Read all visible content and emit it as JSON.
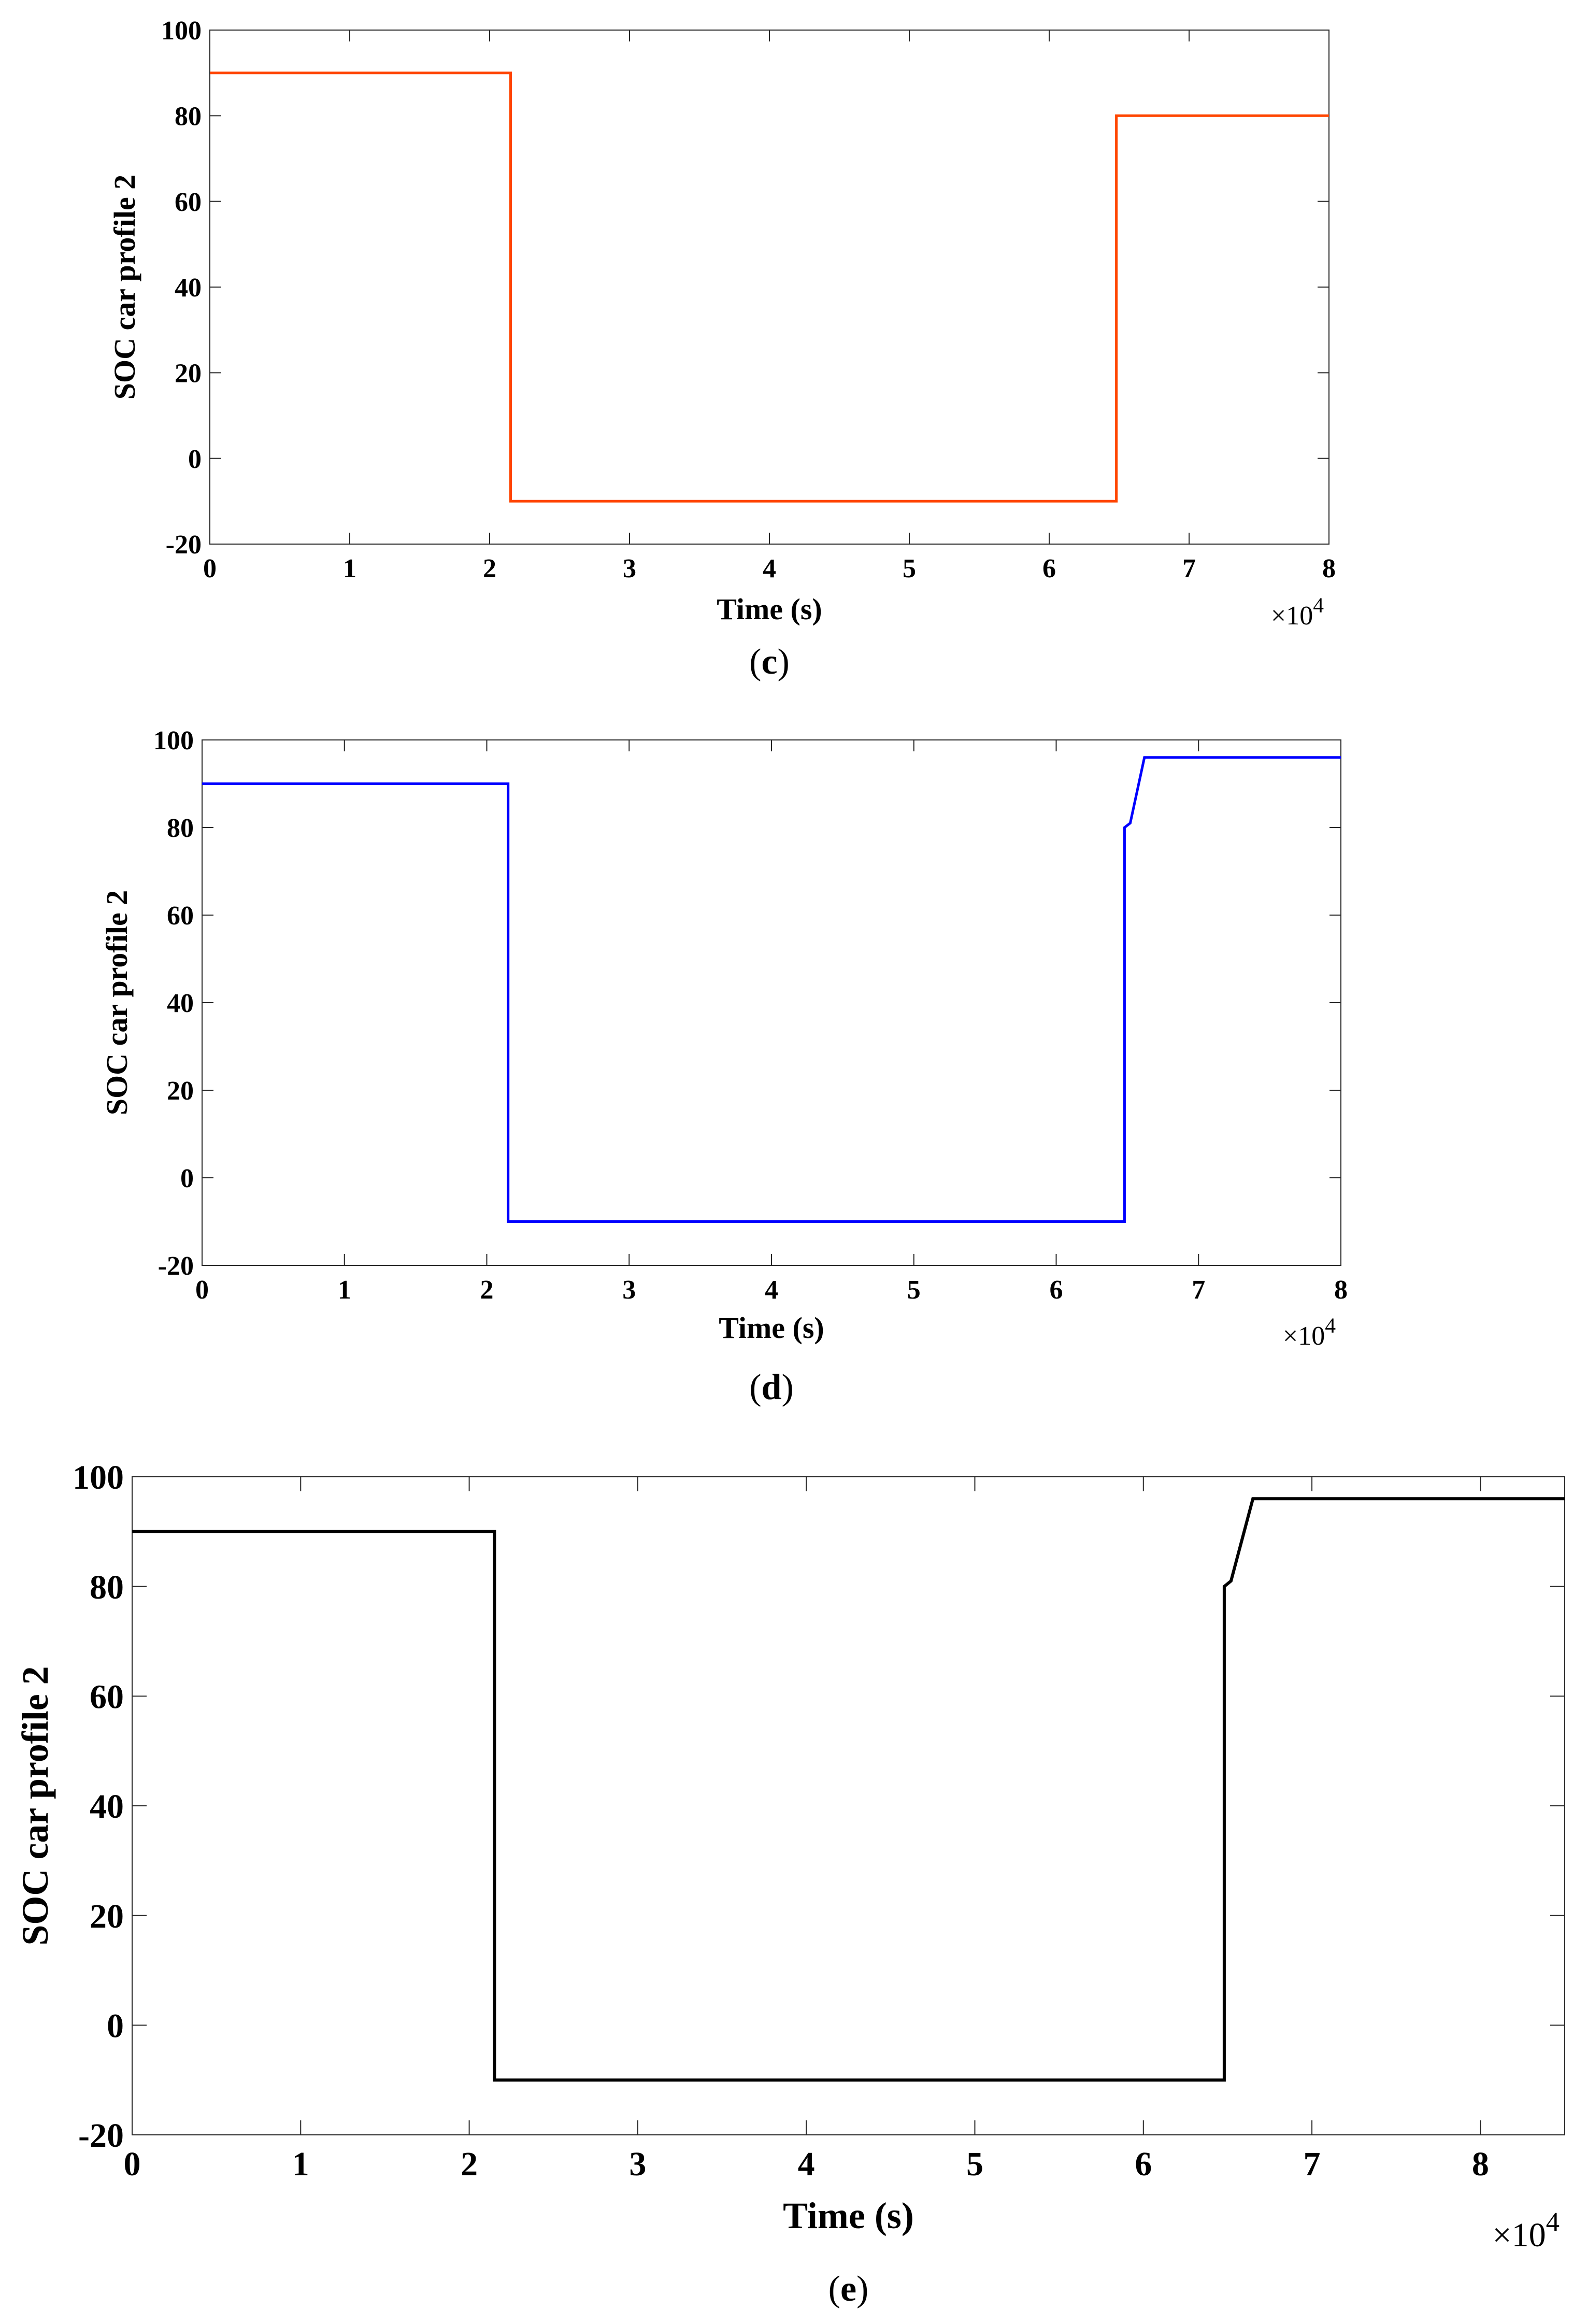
{
  "chart_data": [
    {
      "type": "line",
      "panel_label": "c",
      "xlabel": "Time (s)",
      "ylabel": "SOC car profile 2",
      "x_multiplier": "×10",
      "x_multiplier_exp": "4",
      "xlim": [
        0,
        8
      ],
      "ylim": [
        -20,
        100
      ],
      "xticks": [
        "0",
        "1",
        "2",
        "3",
        "4",
        "5",
        "6",
        "7",
        "8"
      ],
      "yticks": [
        "-20",
        "0",
        "20",
        "40",
        "60",
        "80",
        "100"
      ],
      "grid": false,
      "series": [
        {
          "color": "#ff4500",
          "x": [
            0,
            2.15,
            2.15,
            6.48,
            6.48,
            8.0
          ],
          "y": [
            90,
            90,
            -10,
            -10,
            80,
            80
          ]
        }
      ]
    },
    {
      "type": "line",
      "panel_label": "d",
      "xlabel": "Time (s)",
      "ylabel": "SOC car profile 2",
      "x_multiplier": "×10",
      "x_multiplier_exp": "4",
      "xlim": [
        0,
        8
      ],
      "ylim": [
        -20,
        100
      ],
      "xticks": [
        "0",
        "1",
        "2",
        "3",
        "4",
        "5",
        "6",
        "7",
        "8"
      ],
      "yticks": [
        "-20",
        "0",
        "20",
        "40",
        "60",
        "80",
        "100"
      ],
      "grid": false,
      "series": [
        {
          "color": "#0000ff",
          "x": [
            0,
            2.15,
            2.15,
            6.48,
            6.48,
            6.52,
            6.62,
            8.0
          ],
          "y": [
            90,
            90,
            -10,
            -10,
            80,
            81,
            96,
            96
          ]
        }
      ]
    },
    {
      "type": "line",
      "panel_label": "e",
      "xlabel": "Time (s)",
      "ylabel": "SOC car profile 2",
      "x_multiplier": "×10",
      "x_multiplier_exp": "4",
      "xlim": [
        0,
        8.5
      ],
      "ylim": [
        -20,
        100
      ],
      "xticks": [
        "0",
        "1",
        "2",
        "3",
        "4",
        "5",
        "6",
        "7",
        "8"
      ],
      "yticks": [
        "-20",
        "0",
        "20",
        "40",
        "60",
        "80",
        "100"
      ],
      "grid": false,
      "series": [
        {
          "color": "#000000",
          "x": [
            0,
            2.15,
            2.15,
            6.48,
            6.48,
            6.52,
            6.65,
            8.5
          ],
          "y": [
            90,
            90,
            -10,
            -10,
            80,
            81,
            96,
            96
          ]
        }
      ]
    }
  ]
}
